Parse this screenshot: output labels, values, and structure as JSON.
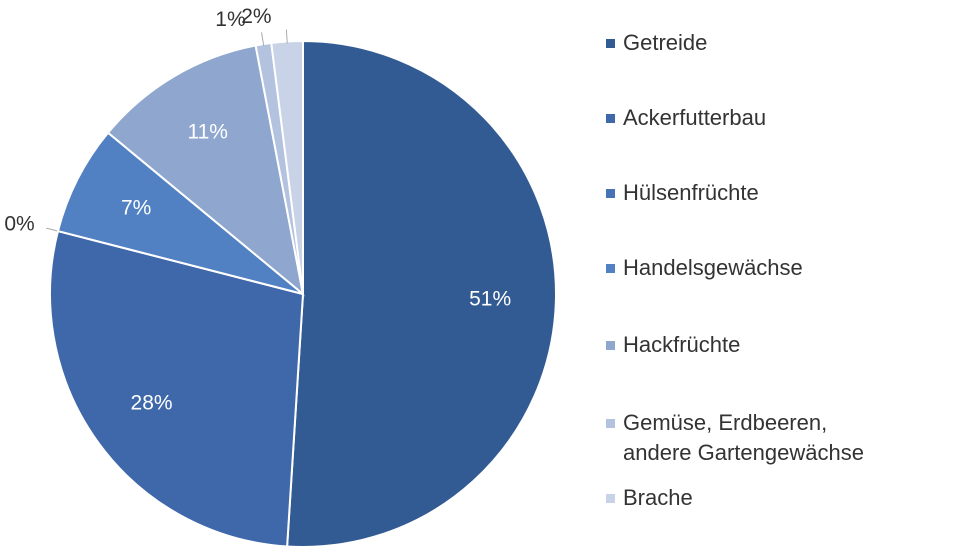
{
  "chart_data": {
    "type": "pie",
    "categories": [
      "Getreide",
      "Ackerfutterbau",
      "Hülsenfrüchte",
      "Handelsgewächse",
      "Hackfrüchte",
      "Gemüse, Erdbeeren, andere Gartengewächse",
      "Brache"
    ],
    "values": [
      51,
      28,
      0,
      7,
      11,
      1,
      2
    ],
    "value_labels": [
      "51%",
      "28%",
      "0%",
      "7%",
      "11%",
      "1%",
      "2%"
    ],
    "colors": [
      "#335b93",
      "#3e68a9",
      "#4672b6",
      "#5181c3",
      "#8fa7cf",
      "#b3c2df",
      "#c8d3e8"
    ],
    "legend": "right"
  }
}
